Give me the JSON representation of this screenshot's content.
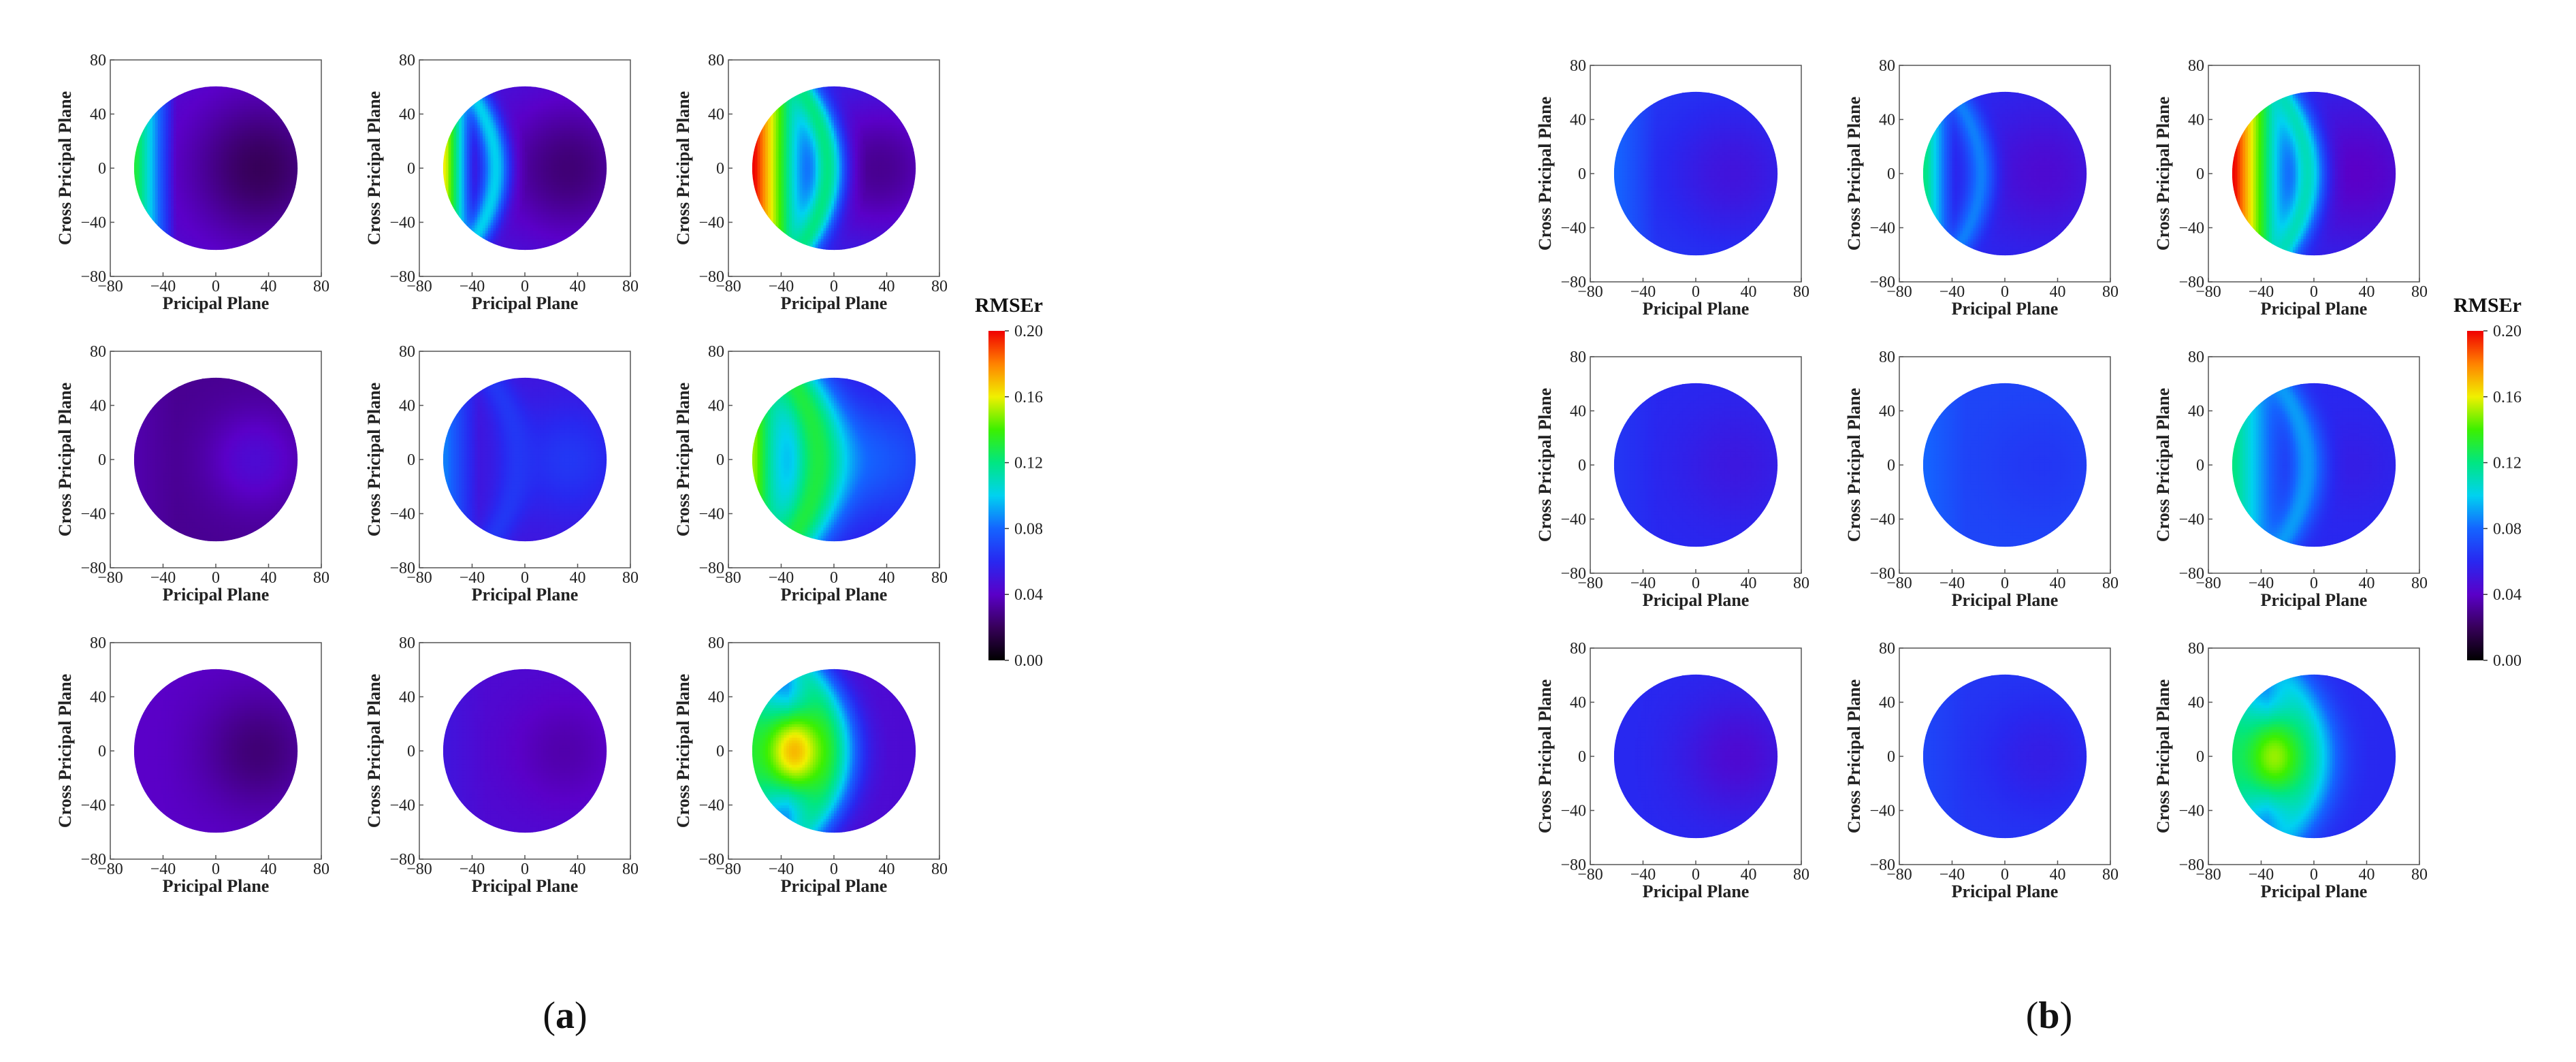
{
  "chart_data": [
    {
      "id": "a",
      "type": "heatmap",
      "panel_label": "a",
      "grid": {
        "rows": 3,
        "cols": 3
      },
      "xlabel": "Pricipal Plane",
      "ylabel": "Cross Pricipal Plane",
      "xlim": [
        -80,
        80
      ],
      "ylim": [
        -80,
        80
      ],
      "x_ticks": [
        -80,
        -40,
        0,
        40,
        80
      ],
      "y_ticks": [
        -80,
        -40,
        0,
        40,
        80
      ],
      "disc_radius": 62,
      "colorbar": {
        "title": "RMSEr",
        "min": 0.0,
        "max": 0.2,
        "ticks": [
          "0.00",
          "0.04",
          "0.08",
          "0.12",
          "0.16",
          "0.20"
        ]
      },
      "cells": [
        {
          "base": 0.045,
          "hot_x": 33,
          "hot_y": 0,
          "hot_depth": 0.025,
          "hot_radius": 38,
          "edge_x": -60,
          "edge_value": 0.13,
          "edge_width": 30,
          "band_x": null,
          "band_value": 0,
          "band_width": 0,
          "blob_x": null,
          "blob_value": 0,
          "blob_radius": 0
        },
        {
          "base": 0.05,
          "hot_x": 33,
          "hot_y": 0,
          "hot_depth": 0.025,
          "hot_radius": 38,
          "edge_x": -60,
          "edge_value": 0.16,
          "edge_width": 22,
          "band_x": -22,
          "band_value": 0.1,
          "band_width": 8,
          "blob_x": null,
          "blob_value": 0,
          "blob_radius": 0
        },
        {
          "base": 0.06,
          "hot_x": 35,
          "hot_y": 0,
          "hot_depth": 0.03,
          "hot_radius": 40,
          "edge_x": -60,
          "edge_value": 0.2,
          "edge_width": 45,
          "band_x": -5,
          "band_value": 0.12,
          "band_width": 10,
          "blob_x": null,
          "blob_value": 0,
          "blob_radius": 0
        },
        {
          "base": 0.03,
          "hot_x": 30,
          "hot_y": 0,
          "hot_depth": -0.015,
          "hot_radius": 25,
          "edge_x": -60,
          "edge_value": 0.035,
          "edge_width": 30,
          "band_x": null,
          "band_value": 0,
          "band_width": 0,
          "blob_x": null,
          "blob_value": 0,
          "blob_radius": 0
        },
        {
          "base": 0.05,
          "hot_x": 33,
          "hot_y": 0,
          "hot_depth": -0.015,
          "hot_radius": 30,
          "edge_x": -60,
          "edge_value": 0.085,
          "edge_width": 25,
          "band_x": -5,
          "band_value": 0.065,
          "band_width": 10,
          "blob_x": null,
          "blob_value": 0,
          "blob_radius": 0
        },
        {
          "base": 0.055,
          "hot_x": 35,
          "hot_y": 0,
          "hot_depth": -0.02,
          "hot_radius": 30,
          "edge_x": -60,
          "edge_value": 0.15,
          "edge_width": 30,
          "band_x": -12,
          "band_value": 0.13,
          "band_width": 18,
          "blob_x": null,
          "blob_value": 0,
          "blob_radius": 0
        },
        {
          "base": 0.04,
          "hot_x": 32,
          "hot_y": 0,
          "hot_depth": 0.015,
          "hot_radius": 30,
          "edge_x": -60,
          "edge_value": 0.04,
          "edge_width": 30,
          "band_x": null,
          "band_value": 0,
          "band_width": 0,
          "blob_x": null,
          "blob_value": 0,
          "blob_radius": 0
        },
        {
          "base": 0.045,
          "hot_x": 30,
          "hot_y": 0,
          "hot_depth": 0.01,
          "hot_radius": 30,
          "edge_x": -60,
          "edge_value": 0.05,
          "edge_width": 30,
          "band_x": null,
          "band_value": 0,
          "band_width": 0,
          "blob_x": null,
          "blob_value": 0,
          "blob_radius": 0
        },
        {
          "base": 0.045,
          "hot_x": 35,
          "hot_y": 0,
          "hot_depth": 0.0,
          "hot_radius": 30,
          "edge_x": -60,
          "edge_value": 0.11,
          "edge_width": 25,
          "band_x": -2,
          "band_value": 0.1,
          "band_width": 14,
          "blob_x": -30,
          "blob_value": 0.17,
          "blob_radius": 22
        }
      ]
    },
    {
      "id": "b",
      "type": "heatmap",
      "panel_label": "b",
      "grid": {
        "rows": 3,
        "cols": 3
      },
      "xlabel": "Pricipal Plane",
      "ylabel": "Cross Pricipal Plane",
      "xlim": [
        -80,
        80
      ],
      "ylim": [
        -80,
        80
      ],
      "x_ticks": [
        -80,
        -40,
        0,
        40,
        80
      ],
      "y_ticks": [
        -80,
        -40,
        0,
        40,
        80
      ],
      "disc_radius": 62,
      "colorbar": {
        "title": "RMSEr",
        "min": 0.0,
        "max": 0.2,
        "ticks": [
          "0.00",
          "0.04",
          "0.08",
          "0.12",
          "0.16",
          "0.20"
        ]
      },
      "cells": [
        {
          "base": 0.065,
          "hot_x": 28,
          "hot_y": 0,
          "hot_depth": 0.015,
          "hot_radius": 35,
          "edge_x": -60,
          "edge_value": 0.08,
          "edge_width": 30,
          "band_x": null,
          "band_value": 0,
          "band_width": 0,
          "blob_x": null,
          "blob_value": 0,
          "blob_radius": 0
        },
        {
          "base": 0.06,
          "hot_x": 30,
          "hot_y": 0,
          "hot_depth": 0.015,
          "hot_radius": 35,
          "edge_x": -60,
          "edge_value": 0.12,
          "edge_width": 22,
          "band_x": -18,
          "band_value": 0.085,
          "band_width": 8,
          "blob_x": null,
          "blob_value": 0,
          "blob_radius": 0
        },
        {
          "base": 0.06,
          "hot_x": 33,
          "hot_y": 0,
          "hot_depth": 0.02,
          "hot_radius": 38,
          "edge_x": -60,
          "edge_value": 0.2,
          "edge_width": 45,
          "band_x": -5,
          "band_value": 0.11,
          "band_width": 10,
          "blob_x": null,
          "blob_value": 0,
          "blob_radius": 0
        },
        {
          "base": 0.06,
          "hot_x": 30,
          "hot_y": 0,
          "hot_depth": 0.008,
          "hot_radius": 30,
          "edge_x": -60,
          "edge_value": 0.065,
          "edge_width": 30,
          "band_x": null,
          "band_value": 0,
          "band_width": 0,
          "blob_x": null,
          "blob_value": 0,
          "blob_radius": 0
        },
        {
          "base": 0.07,
          "hot_x": 28,
          "hot_y": 0,
          "hot_depth": 0.005,
          "hot_radius": 30,
          "edge_x": -60,
          "edge_value": 0.08,
          "edge_width": 30,
          "band_x": null,
          "band_value": 0,
          "band_width": 0,
          "blob_x": null,
          "blob_value": 0,
          "blob_radius": 0
        },
        {
          "base": 0.06,
          "hot_x": 30,
          "hot_y": 0,
          "hot_depth": 0.005,
          "hot_radius": 25,
          "edge_x": -60,
          "edge_value": 0.12,
          "edge_width": 40,
          "band_x": -5,
          "band_value": 0.09,
          "band_width": 10,
          "blob_x": null,
          "blob_value": 0,
          "blob_radius": 0
        },
        {
          "base": 0.06,
          "hot_x": 32,
          "hot_y": 0,
          "hot_depth": 0.015,
          "hot_radius": 30,
          "edge_x": -60,
          "edge_value": 0.06,
          "edge_width": 30,
          "band_x": null,
          "band_value": 0,
          "band_width": 0,
          "blob_x": null,
          "blob_value": 0,
          "blob_radius": 0
        },
        {
          "base": 0.065,
          "hot_x": 28,
          "hot_y": 0,
          "hot_depth": 0.01,
          "hot_radius": 30,
          "edge_x": -60,
          "edge_value": 0.07,
          "edge_width": 30,
          "band_x": null,
          "band_value": 0,
          "band_width": 0,
          "blob_x": null,
          "blob_value": 0,
          "blob_radius": 0
        },
        {
          "base": 0.06,
          "hot_x": 32,
          "hot_y": 0,
          "hot_depth": 0.0,
          "hot_radius": 30,
          "edge_x": -60,
          "edge_value": 0.11,
          "edge_width": 25,
          "band_x": -2,
          "band_value": 0.09,
          "band_width": 14,
          "blob_x": -30,
          "blob_value": 0.15,
          "blob_radius": 22
        }
      ]
    }
  ]
}
